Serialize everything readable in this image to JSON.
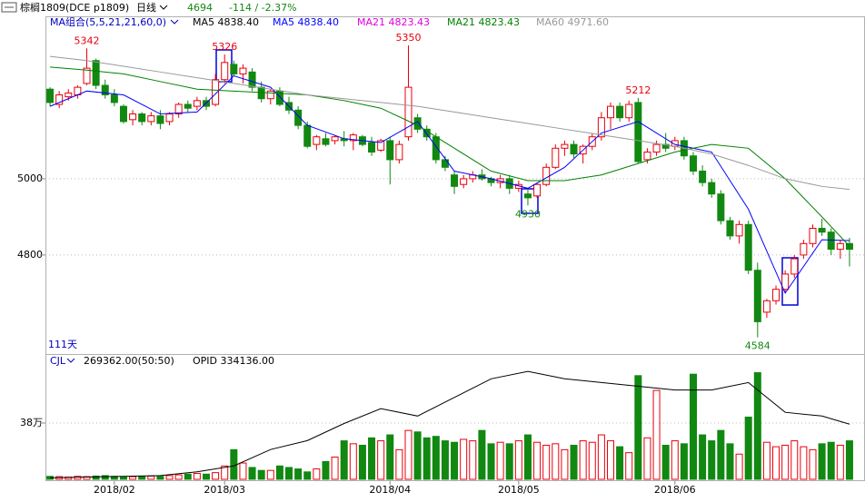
{
  "header": {
    "symbol": "棕榈1809(DCE p1809)",
    "period": "日线",
    "price": "4694",
    "change": "-114 / -2.37%"
  },
  "chart_data": [
    {
      "type": "candlestick",
      "legend_title": "MA组合(5,5,21,21,60,0)",
      "legend_labels": [
        {
          "text": "MA5 4838.40",
          "color": "#000000"
        },
        {
          "text": "MA21 4823.43",
          "color": "#e000e0"
        }
      ],
      "footnote": "111天",
      "categories": [
        null,
        null,
        null,
        null,
        null,
        null,
        null,
        "2018/02",
        null,
        null,
        null,
        null,
        null,
        null,
        null,
        null,
        null,
        null,
        null,
        "2018/03",
        null,
        null,
        null,
        null,
        null,
        null,
        null,
        null,
        null,
        null,
        null,
        null,
        null,
        null,
        null,
        null,
        null,
        "2018/04",
        null,
        null,
        null,
        null,
        null,
        null,
        null,
        null,
        null,
        null,
        null,
        null,
        null,
        "2018/05",
        null,
        null,
        null,
        null,
        null,
        null,
        null,
        null,
        null,
        null,
        null,
        null,
        null,
        null,
        null,
        null,
        "2018/06",
        null,
        null,
        null,
        null,
        null,
        null,
        null,
        null,
        null,
        null,
        null,
        null,
        null,
        null,
        null,
        null,
        null,
        null,
        null
      ],
      "open": [
        5235,
        5195,
        5215,
        5220,
        5250,
        5310,
        5245,
        5220,
        5190,
        5155,
        5170,
        5150,
        5165,
        5150,
        5170,
        5195,
        5190,
        5205,
        5195,
        5260,
        5300,
        5275,
        5280,
        5240,
        5210,
        5230,
        5200,
        5180,
        5140,
        5090,
        5105,
        5100,
        5105,
        5100,
        5110,
        5095,
        5075,
        5100,
        5050,
        5110,
        5160,
        5130,
        5110,
        5050,
        5010,
        4985,
        5000,
        5010,
        5000,
        4990,
        5000,
        4975,
        4960,
        4955,
        4985,
        5030,
        5080,
        5090,
        5065,
        5085,
        5110,
        5160,
        5190,
        5160,
        5200,
        5050,
        5070,
        5090,
        5085,
        5100,
        5060,
        5020,
        4990,
        4960,
        4890,
        4850,
        4880,
        4760,
        4650,
        4680,
        4710,
        4750,
        4800,
        4830,
        4870,
        4860,
        4815,
        4830
      ],
      "high": [
        5240,
        5230,
        5235,
        5245,
        5342,
        5315,
        5260,
        5235,
        5195,
        5180,
        5175,
        5175,
        5180,
        5175,
        5200,
        5205,
        5215,
        5215,
        5275,
        5326,
        5310,
        5300,
        5290,
        5255,
        5235,
        5240,
        5215,
        5190,
        5150,
        5115,
        5120,
        5115,
        5125,
        5120,
        5115,
        5110,
        5105,
        5110,
        5100,
        5350,
        5170,
        5140,
        5120,
        5060,
        5020,
        5010,
        5020,
        5025,
        5005,
        5010,
        5010,
        4995,
        4975,
        4990,
        5040,
        5090,
        5100,
        5100,
        5090,
        5120,
        5175,
        5200,
        5200,
        5205,
        5212,
        5080,
        5100,
        5120,
        5110,
        5110,
        5070,
        5035,
        5000,
        4970,
        4900,
        4890,
        4890,
        4780,
        4685,
        4720,
        4760,
        4800,
        4840,
        4880,
        4895,
        4870,
        4840,
        4845
      ],
      "low": [
        5190,
        5185,
        5205,
        5210,
        5245,
        5235,
        5210,
        5190,
        5145,
        5140,
        5140,
        5140,
        5130,
        5140,
        5160,
        5175,
        5180,
        5180,
        5190,
        5250,
        5270,
        5250,
        5230,
        5200,
        5195,
        5190,
        5170,
        5130,
        5080,
        5075,
        5085,
        5090,
        5085,
        5075,
        5085,
        5060,
        5070,
        4985,
        5040,
        5100,
        5120,
        5100,
        5040,
        5020,
        4960,
        4975,
        4990,
        4995,
        4980,
        4975,
        4960,
        4965,
        4930,
        4950,
        4980,
        5025,
        5060,
        5055,
        5040,
        5075,
        5100,
        5130,
        5150,
        5150,
        5040,
        5040,
        5060,
        5070,
        5075,
        5050,
        5010,
        4980,
        4950,
        4880,
        4840,
        4830,
        4750,
        4584,
        4635,
        4670,
        4700,
        4740,
        4790,
        4820,
        4850,
        4800,
        4790,
        4770
      ],
      "close": [
        5200,
        5220,
        5225,
        5240,
        5290,
        5245,
        5220,
        5200,
        5150,
        5170,
        5150,
        5165,
        5145,
        5170,
        5195,
        5185,
        5205,
        5190,
        5260,
        5305,
        5275,
        5290,
        5240,
        5210,
        5230,
        5195,
        5180,
        5140,
        5085,
        5110,
        5090,
        5110,
        5100,
        5115,
        5090,
        5070,
        5100,
        5050,
        5090,
        5240,
        5130,
        5110,
        5050,
        5030,
        4980,
        5000,
        5010,
        5000,
        4990,
        5000,
        4975,
        4985,
        4950,
        4985,
        5030,
        5080,
        5090,
        5065,
        5085,
        5110,
        5160,
        5190,
        5160,
        5195,
        5045,
        5070,
        5090,
        5080,
        5100,
        5060,
        5020,
        4990,
        4960,
        4890,
        4850,
        4880,
        4760,
        4625,
        4680,
        4710,
        4750,
        4790,
        4830,
        4870,
        4860,
        4815,
        4830,
        4815
      ],
      "up_color": "#e8000b",
      "down_color": "#118811",
      "series": [
        {
          "name": "MA5 4838.40",
          "color": "#0000ff",
          "x": [
            0,
            4,
            8,
            12,
            16,
            20,
            24,
            28,
            32,
            36,
            40,
            44,
            48,
            52,
            56,
            60,
            64,
            68,
            72,
            76,
            80,
            84,
            87
          ],
          "values": [
            5190,
            5230,
            5220,
            5170,
            5175,
            5270,
            5240,
            5140,
            5105,
            5095,
            5150,
            5020,
            5000,
            4975,
            5030,
            5120,
            5150,
            5090,
            5070,
            4920,
            4700,
            4840,
            4838
          ]
        },
        {
          "name": "MA21 4823.43",
          "color": "#008000",
          "x": [
            0,
            4,
            8,
            12,
            16,
            20,
            24,
            28,
            32,
            36,
            40,
            44,
            48,
            52,
            56,
            60,
            64,
            68,
            72,
            76,
            80,
            84,
            87
          ],
          "values": [
            5293,
            5285,
            5275,
            5255,
            5235,
            5230,
            5225,
            5220,
            5205,
            5185,
            5140,
            5080,
            5020,
            4995,
            4995,
            5010,
            5040,
            5070,
            5090,
            5080,
            5000,
            4900,
            4823
          ]
        },
        {
          "name": "MA60 4971.60",
          "color": "#999999",
          "x": [
            0,
            4,
            8,
            12,
            16,
            20,
            24,
            28,
            32,
            36,
            40,
            44,
            48,
            52,
            56,
            60,
            64,
            68,
            72,
            76,
            80,
            84,
            87
          ],
          "values": [
            5321,
            5310,
            5295,
            5280,
            5265,
            5250,
            5235,
            5220,
            5210,
            5200,
            5190,
            5175,
            5160,
            5145,
            5130,
            5115,
            5100,
            5085,
            5065,
            5035,
            5000,
            4980,
            4972
          ]
        }
      ],
      "ylim": [
        4545,
        5426
      ],
      "yticks": [
        4800,
        5000
      ],
      "grid": true
    },
    {
      "type": "bar",
      "title": "CJL",
      "subtitle": "269362.00(50:50)",
      "values": [
        20000,
        18000,
        15000,
        20000,
        18000,
        22000,
        25000,
        20000,
        15000,
        18000,
        20000,
        22000,
        20000,
        25000,
        30000,
        35000,
        40000,
        35000,
        45000,
        90000,
        200000,
        110000,
        80000,
        60000,
        60000,
        90000,
        80000,
        70000,
        50000,
        70000,
        120000,
        150000,
        260000,
        240000,
        230000,
        280000,
        260000,
        300000,
        200000,
        330000,
        320000,
        280000,
        290000,
        260000,
        250000,
        270000,
        260000,
        330000,
        240000,
        250000,
        240000,
        260000,
        300000,
        250000,
        230000,
        240000,
        200000,
        230000,
        260000,
        250000,
        300000,
        260000,
        220000,
        180000,
        700000,
        280000,
        600000,
        230000,
        260000,
        240000,
        710000,
        300000,
        260000,
        330000,
        240000,
        170000,
        420000,
        720000,
        250000,
        220000,
        230000,
        260000,
        220000,
        200000,
        240000,
        250000,
        230000,
        260000
      ],
      "ylim": [
        0,
        754000
      ],
      "yticks": [
        {
          "value": 380000,
          "label": "38万"
        }
      ],
      "grid": true,
      "series": [
        {
          "name": "OPID 334136.00",
          "color": "#000000",
          "axis": "y2",
          "x": [
            0,
            4,
            8,
            12,
            16,
            20,
            24,
            28,
            32,
            36,
            40,
            44,
            48,
            52,
            56,
            60,
            64,
            68,
            72,
            76,
            80,
            84,
            87
          ],
          "values": [
            262000,
            263000,
            264000,
            265000,
            270000,
            278000,
            300000,
            312000,
            335000,
            355000,
            345000,
            370000,
            395000,
            405000,
            395000,
            390000,
            385000,
            380000,
            380000,
            390000,
            350000,
            345000,
            334136
          ]
        }
      ],
      "y2lim": [
        260000,
        410000
      ]
    }
  ]
}
